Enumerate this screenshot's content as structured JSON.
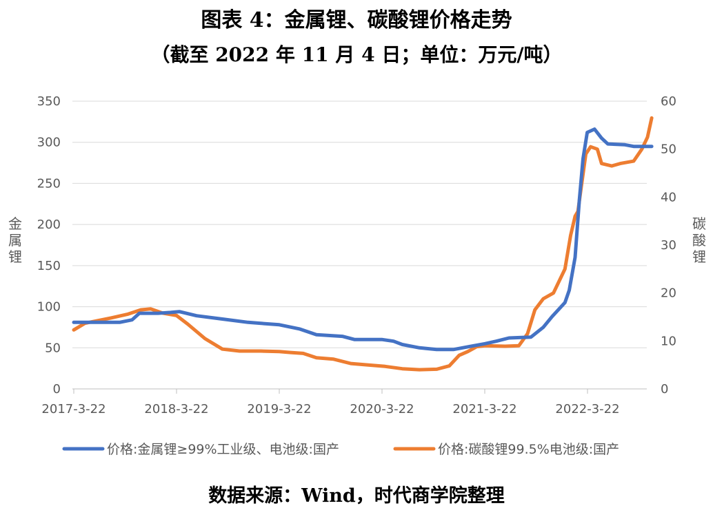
{
  "title": "图表 4：金属锂、碳酸锂价格走势",
  "subtitle": "（截至 2022 年 11 月 4 日；单位：万元/吨）",
  "source": "数据来源：Wind，时代商学院整理",
  "chart_data": {
    "type": "line",
    "x_tick_labels": [
      "2017-3-22",
      "2018-3-22",
      "2019-3-22",
      "2020-3-22",
      "2021-3-22",
      "2022-3-22"
    ],
    "x_range": [
      "2017-03-22",
      "2022-11-04"
    ],
    "y_left": {
      "label": "金属锂",
      "range": [
        0,
        350
      ],
      "ticks": [
        0,
        50,
        100,
        150,
        200,
        250,
        300,
        350
      ]
    },
    "y_right": {
      "label": "碳酸锂",
      "range": [
        0,
        60
      ],
      "ticks": [
        0,
        10,
        20,
        30,
        40,
        50,
        60
      ]
    },
    "grid": true,
    "legend_position": "bottom",
    "series": [
      {
        "name": "价格:金属锂≥99%工业级、电池级:国产",
        "axis": "left",
        "color": "#4472C4",
        "points": [
          [
            "2017-03-22",
            81
          ],
          [
            "2017-06-01",
            81
          ],
          [
            "2017-09-01",
            81
          ],
          [
            "2017-10-15",
            84
          ],
          [
            "2017-11-10",
            92
          ],
          [
            "2018-01-15",
            92
          ],
          [
            "2018-03-01",
            93
          ],
          [
            "2018-04-01",
            94
          ],
          [
            "2018-06-01",
            89
          ],
          [
            "2018-09-01",
            85
          ],
          [
            "2018-12-01",
            81
          ],
          [
            "2019-03-22",
            78
          ],
          [
            "2019-06-01",
            73
          ],
          [
            "2019-08-01",
            66
          ],
          [
            "2019-11-01",
            64
          ],
          [
            "2019-12-15",
            60
          ],
          [
            "2020-03-22",
            60
          ],
          [
            "2020-05-01",
            58
          ],
          [
            "2020-06-01",
            54
          ],
          [
            "2020-08-01",
            50
          ],
          [
            "2020-10-01",
            48
          ],
          [
            "2020-12-01",
            48
          ],
          [
            "2021-02-01",
            52
          ],
          [
            "2021-03-22",
            55
          ],
          [
            "2021-05-01",
            58
          ],
          [
            "2021-06-15",
            62
          ],
          [
            "2021-09-01",
            63
          ],
          [
            "2021-10-15",
            75
          ],
          [
            "2021-11-15",
            88
          ],
          [
            "2021-12-31",
            105
          ],
          [
            "2022-01-15",
            120
          ],
          [
            "2022-02-05",
            160
          ],
          [
            "2022-02-20",
            230
          ],
          [
            "2022-03-05",
            280
          ],
          [
            "2022-03-20",
            312
          ],
          [
            "2022-04-15",
            316
          ],
          [
            "2022-05-10",
            305
          ],
          [
            "2022-06-01",
            298
          ],
          [
            "2022-08-01",
            297
          ],
          [
            "2022-09-01",
            295
          ],
          [
            "2022-11-04",
            295
          ]
        ]
      },
      {
        "name": "价格:碳酸锂99.5%电池级:国产",
        "axis": "right",
        "color": "#ED7D31",
        "points": [
          [
            "2017-03-22",
            12.3
          ],
          [
            "2017-05-01",
            13.7
          ],
          [
            "2017-08-01",
            14.8
          ],
          [
            "2017-10-01",
            15.6
          ],
          [
            "2017-11-15",
            16.5
          ],
          [
            "2017-12-20",
            16.7
          ],
          [
            "2018-02-01",
            15.8
          ],
          [
            "2018-03-22",
            15.3
          ],
          [
            "2018-05-01",
            13.5
          ],
          [
            "2018-07-01",
            10.5
          ],
          [
            "2018-09-01",
            8.3
          ],
          [
            "2018-11-01",
            7.9
          ],
          [
            "2019-01-15",
            7.9
          ],
          [
            "2019-03-22",
            7.8
          ],
          [
            "2019-05-01",
            7.6
          ],
          [
            "2019-06-15",
            7.4
          ],
          [
            "2019-08-01",
            6.5
          ],
          [
            "2019-10-01",
            6.2
          ],
          [
            "2019-12-01",
            5.3
          ],
          [
            "2020-02-01",
            5.0
          ],
          [
            "2020-04-01",
            4.7
          ],
          [
            "2020-06-01",
            4.2
          ],
          [
            "2020-08-01",
            4.0
          ],
          [
            "2020-10-01",
            4.1
          ],
          [
            "2020-11-15",
            4.8
          ],
          [
            "2020-12-20",
            7.0
          ],
          [
            "2021-01-20",
            7.8
          ],
          [
            "2021-02-20",
            8.8
          ],
          [
            "2021-03-22",
            9.0
          ],
          [
            "2021-06-01",
            8.9
          ],
          [
            "2021-07-20",
            9.0
          ],
          [
            "2021-08-20",
            11.5
          ],
          [
            "2021-09-15",
            16.5
          ],
          [
            "2021-10-15",
            18.8
          ],
          [
            "2021-11-20",
            20.0
          ],
          [
            "2021-12-31",
            25.0
          ],
          [
            "2022-01-20",
            32.0
          ],
          [
            "2022-02-05",
            36.0
          ],
          [
            "2022-02-15",
            37.0
          ],
          [
            "2022-03-01",
            43.0
          ],
          [
            "2022-03-15",
            49.0
          ],
          [
            "2022-04-01",
            50.5
          ],
          [
            "2022-04-25",
            50.0
          ],
          [
            "2022-05-10",
            47.0
          ],
          [
            "2022-06-15",
            46.5
          ],
          [
            "2022-07-15",
            47.0
          ],
          [
            "2022-09-01",
            47.5
          ],
          [
            "2022-09-30",
            50.0
          ],
          [
            "2022-10-20",
            52.5
          ],
          [
            "2022-11-04",
            56.5
          ]
        ]
      }
    ]
  }
}
